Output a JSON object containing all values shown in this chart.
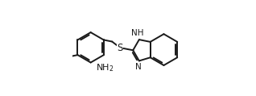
{
  "background_color": "#ffffff",
  "line_color": "#1a1a1a",
  "line_width": 1.4,
  "dbo": 0.013,
  "font_size": 7.5,
  "figsize": [
    3.18,
    1.19
  ],
  "dpi": 100,
  "xlim": [
    0.0,
    1.0
  ],
  "ylim": [
    0.1,
    0.95
  ]
}
